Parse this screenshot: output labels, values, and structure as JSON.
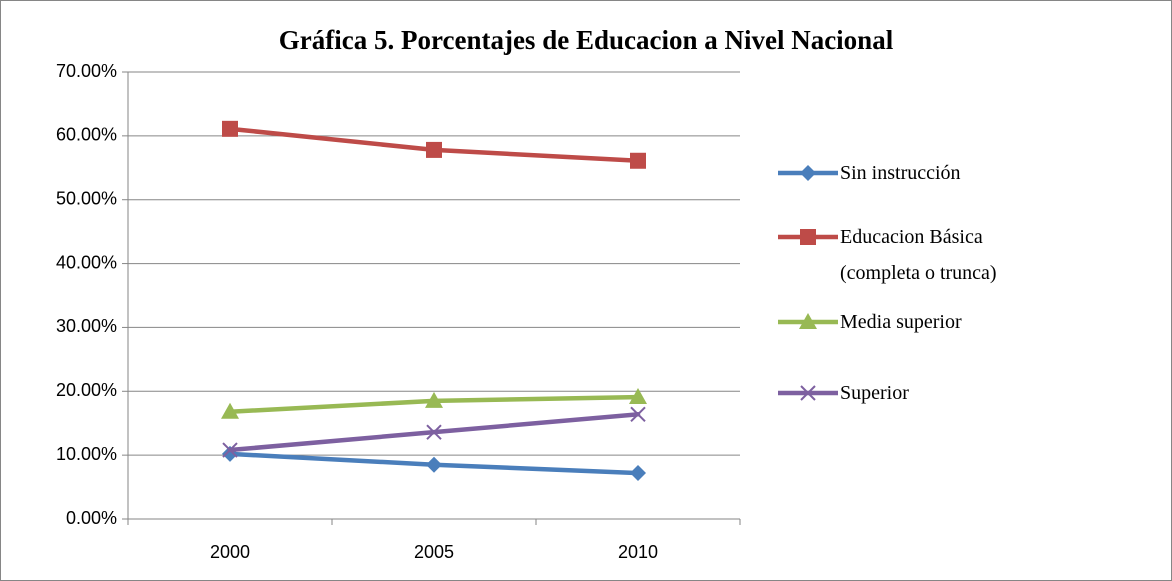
{
  "chart_data": {
    "type": "line",
    "title": "Gráfica 5. Porcentajes de Educacion a Nivel Nacional",
    "categories": [
      "2000",
      "2005",
      "2010"
    ],
    "series": [
      {
        "name": "Sin instrucción",
        "color": "#4a7ebb",
        "marker": "diamond",
        "values": [
          10.2,
          8.5,
          7.2
        ]
      },
      {
        "name": "Educacion Básica (completa o trunca)",
        "color": "#be4b48",
        "marker": "square",
        "values": [
          61.1,
          57.8,
          56.1
        ]
      },
      {
        "name": "Media superior",
        "color": "#98b954",
        "marker": "triangle",
        "values": [
          16.8,
          18.5,
          19.1
        ]
      },
      {
        "name": "Superior",
        "color": "#7d60a0",
        "marker": "x",
        "values": [
          10.8,
          13.6,
          16.4
        ]
      }
    ],
    "ylim": [
      0,
      70
    ],
    "yticks": [
      {
        "value": 0,
        "label": "0.00%"
      },
      {
        "value": 10,
        "label": "10.00%"
      },
      {
        "value": 20,
        "label": "20.00%"
      },
      {
        "value": 30,
        "label": "30.00%"
      },
      {
        "value": 40,
        "label": "40.00%"
      },
      {
        "value": 50,
        "label": "50.00%"
      },
      {
        "value": 60,
        "label": "60.00%"
      },
      {
        "value": 70,
        "label": "70.00%"
      }
    ],
    "grid": true,
    "legend": "right"
  }
}
